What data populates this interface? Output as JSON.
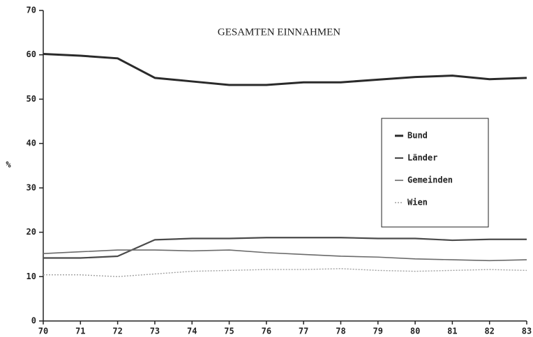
{
  "chart_data": {
    "type": "line",
    "title": "GESAMTEN   EINNAHMEN",
    "y_label": "%",
    "x": [
      70,
      71,
      72,
      73,
      74,
      75,
      76,
      77,
      78,
      79,
      80,
      81,
      82,
      83
    ],
    "xlim": [
      70,
      83
    ],
    "xticks": [
      70,
      71,
      72,
      73,
      74,
      75,
      76,
      77,
      78,
      79,
      80,
      81,
      82,
      83
    ],
    "ylim": [
      0,
      70
    ],
    "yticks": [
      0,
      10,
      20,
      30,
      40,
      50,
      60,
      70
    ],
    "legend": "right",
    "series": [
      {
        "name": "Bund",
        "color": "#2a2a2a",
        "values": [
          60.2,
          59.8,
          59.2,
          54.8,
          54.0,
          53.2,
          53.2,
          53.8,
          53.8,
          54.4,
          55.0,
          55.3,
          54.5,
          54.8
        ]
      },
      {
        "name": "Länder",
        "color": "#4a4a4a",
        "values": [
          14.2,
          14.2,
          14.6,
          18.3,
          18.6,
          18.6,
          18.8,
          18.8,
          18.8,
          18.6,
          18.6,
          18.2,
          18.4,
          18.4
        ]
      },
      {
        "name": "Gemeinden",
        "color": "#6a6a6a",
        "values": [
          15.2,
          15.6,
          16.0,
          16.0,
          15.8,
          16.0,
          15.4,
          15.0,
          14.6,
          14.4,
          14.0,
          13.8,
          13.6,
          13.8
        ]
      },
      {
        "name": "Wien",
        "color": "#a0a0a0",
        "values": [
          10.4,
          10.4,
          10.0,
          10.6,
          11.2,
          11.4,
          11.6,
          11.6,
          11.8,
          11.4,
          11.2,
          11.4,
          11.6,
          11.4
        ]
      }
    ]
  }
}
